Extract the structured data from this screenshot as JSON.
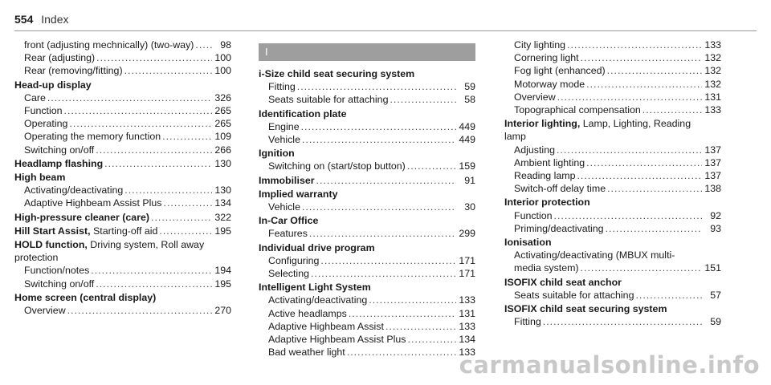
{
  "header": {
    "page_number": "554",
    "section": "Index"
  },
  "col_a": {
    "e0_lines": [
      {
        "text": "front (adjusting mechnically) (two-way)",
        "page": "98"
      },
      {
        "text": "Rear (adjusting)",
        "page": "100"
      },
      {
        "text": "Rear (removing/fitting)",
        "page": "100"
      }
    ],
    "hud": {
      "title": "Head-up display",
      "items": [
        {
          "text": "Care",
          "page": "326"
        },
        {
          "text": "Function",
          "page": "265"
        },
        {
          "text": "Operating",
          "page": "265"
        },
        {
          "text": "Operating the memory function",
          "page": "109"
        },
        {
          "text": "Switching on/off",
          "page": "266"
        }
      ]
    },
    "headlamp": {
      "title": "Headlamp flashing",
      "page": "130"
    },
    "highbeam": {
      "title": "High beam",
      "items": [
        {
          "text": "Activating/deactivating",
          "page": "130"
        },
        {
          "text": "Adaptive Highbeam Assist Plus",
          "page": "134"
        }
      ]
    },
    "hpc": {
      "title": "High-pressure cleaner (care)",
      "page": "322"
    },
    "hsa": {
      "title": "Hill Start Assist,",
      "rest": " Starting-off aid",
      "page": "195"
    },
    "hold": {
      "title": "HOLD function,",
      "rest": " Driving system, Roll away",
      "cont": "protection",
      "items": [
        {
          "text": "Function/notes",
          "page": "194"
        },
        {
          "text": "Switching on/off",
          "page": "195"
        }
      ]
    },
    "home": {
      "title": "Home screen (central display)",
      "items": [
        {
          "text": "Overview",
          "page": "270"
        }
      ]
    }
  },
  "col_b": {
    "letter": "I",
    "isize": {
      "title": "i-Size child seat securing system",
      "items": [
        {
          "text": "Fitting",
          "page": "59"
        },
        {
          "text": "Seats suitable for attaching",
          "page": "58"
        }
      ]
    },
    "idplate": {
      "title": "Identification plate",
      "items": [
        {
          "text": "Engine",
          "page": "449"
        },
        {
          "text": "Vehicle",
          "page": "449"
        }
      ]
    },
    "ignition": {
      "title": "Ignition",
      "items": [
        {
          "text": "Switching on (start/stop button)",
          "page": "159"
        }
      ]
    },
    "immobiliser": {
      "title": "Immobiliser",
      "page": "91"
    },
    "implied": {
      "title": "Implied warranty",
      "items": [
        {
          "text": "Vehicle",
          "page": "30"
        }
      ]
    },
    "incar": {
      "title": "In-Car Office",
      "items": [
        {
          "text": "Features",
          "page": "299"
        }
      ]
    },
    "idp": {
      "title": "Individual drive program",
      "items": [
        {
          "text": "Configuring",
          "page": "171"
        },
        {
          "text": "Selecting",
          "page": "171"
        }
      ]
    },
    "ils": {
      "title": "Intelligent Light System",
      "items": [
        {
          "text": "Activating/deactivating",
          "page": "133"
        },
        {
          "text": "Active headlamps",
          "page": "131"
        },
        {
          "text": "Adaptive Highbeam Assist",
          "page": "133"
        },
        {
          "text": "Adaptive Highbeam Assist Plus",
          "page": "134"
        },
        {
          "text": "Bad weather light",
          "page": "133"
        }
      ]
    }
  },
  "col_c": {
    "ils_cont": [
      {
        "text": "City lighting",
        "page": "133"
      },
      {
        "text": "Cornering light",
        "page": "132"
      },
      {
        "text": "Fog light (enhanced)",
        "page": "132"
      },
      {
        "text": "Motorway mode",
        "page": "132"
      },
      {
        "text": "Overview",
        "page": "131"
      },
      {
        "text": "Topographical compensation",
        "page": "133"
      }
    ],
    "interior": {
      "title": "Interior lighting,",
      "rest": " Lamp, Lighting, Reading",
      "cont": "lamp",
      "items": [
        {
          "text": "Adjusting",
          "page": "137"
        },
        {
          "text": "Ambient lighting",
          "page": "137"
        },
        {
          "text": "Reading lamp",
          "page": "137"
        },
        {
          "text": "Switch-off delay time",
          "page": "138"
        }
      ]
    },
    "intprot": {
      "title": "Interior protection",
      "items": [
        {
          "text": "Function",
          "page": "92"
        },
        {
          "text": "Priming/deactivating",
          "page": "93"
        }
      ]
    },
    "ionisation": {
      "title": "Ionisation",
      "line1": "Activating/deactivating (MBUX multi-",
      "line2": "media system)",
      "page": "151"
    },
    "isofix_anchor": {
      "title": "ISOFIX child seat anchor",
      "items": [
        {
          "text": "Seats suitable for attaching",
          "page": "57"
        }
      ]
    },
    "isofix_sys": {
      "title": "ISOFIX child seat securing system",
      "items": [
        {
          "text": "Fitting",
          "page": "59"
        }
      ]
    }
  },
  "watermark": "carmanualsonline.info"
}
